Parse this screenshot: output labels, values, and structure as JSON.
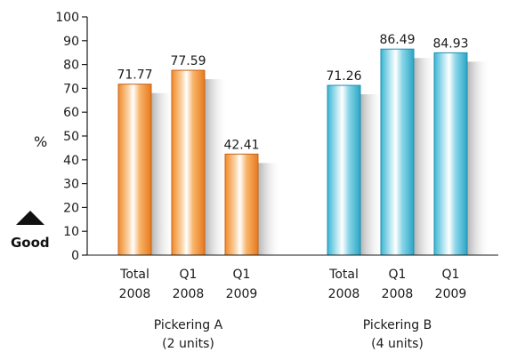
{
  "chart_data": {
    "type": "bar",
    "ylabel": "%",
    "ylim": [
      0,
      100
    ],
    "yticks": [
      0,
      10,
      20,
      30,
      40,
      50,
      60,
      70,
      80,
      90,
      100
    ],
    "indicator": {
      "label": "Good",
      "icon": "up-triangle-icon"
    },
    "groups": [
      {
        "name_line1": "Pickering A",
        "name_line2": "(2 units)",
        "color": "#f39a3c",
        "bars": [
          {
            "cat_line1": "Total",
            "cat_line2": "2008",
            "value": 71.77,
            "label": "71.77"
          },
          {
            "cat_line1": "Q1",
            "cat_line2": "2008",
            "value": 77.59,
            "label": "77.59"
          },
          {
            "cat_line1": "Q1",
            "cat_line2": "2009",
            "value": 42.41,
            "label": "42.41"
          }
        ]
      },
      {
        "name_line1": "Pickering B",
        "name_line2": "(4 units)",
        "color": "#4fc3dc",
        "bars": [
          {
            "cat_line1": "Total",
            "cat_line2": "2008",
            "value": 71.26,
            "label": "71.26"
          },
          {
            "cat_line1": "Q1",
            "cat_line2": "2008",
            "value": 86.49,
            "label": "86.49"
          },
          {
            "cat_line1": "Q1",
            "cat_line2": "2009",
            "value": 84.93,
            "label": "84.93"
          }
        ]
      }
    ]
  }
}
